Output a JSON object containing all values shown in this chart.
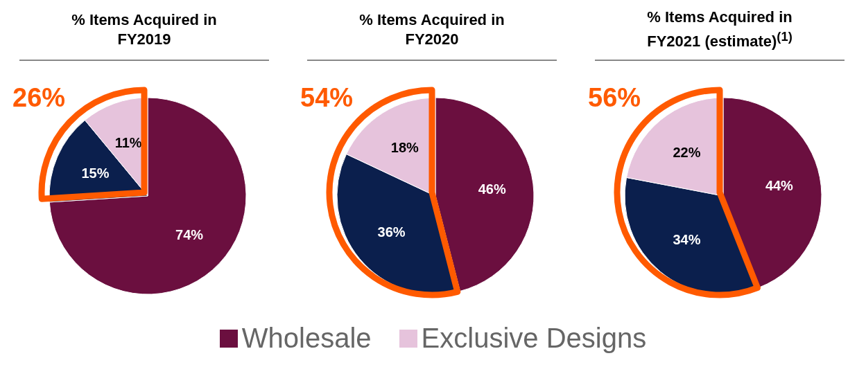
{
  "chart_data": [
    {
      "type": "pie",
      "title": "% Items Acquired in FY2019",
      "categories": [
        "Wholesale",
        null,
        "Exclusive Designs"
      ],
      "values": [
        74,
        15,
        11
      ],
      "colors": [
        "#6b0f3f",
        "#0b1f4d",
        "#e6c3dc"
      ],
      "value_labels": [
        "74%",
        "15%",
        "11%"
      ],
      "annotations": [
        "26%"
      ],
      "legend": "bottom"
    },
    {
      "type": "pie",
      "title": "% Items Acquired in FY2020",
      "categories": [
        null,
        null,
        null
      ],
      "values": [
        46,
        36,
        18
      ],
      "colors": [
        "#6b0f3f",
        "#0b1f4d",
        "#e6c3dc"
      ],
      "value_labels": [
        "46%",
        "36%",
        "18%"
      ],
      "annotations": [
        "54%"
      ]
    },
    {
      "type": "pie",
      "title": "% Items Acquired in FY2021 (estimate)$^{(1)}$",
      "categories": [
        null,
        null,
        null
      ],
      "values": [
        44,
        34,
        22
      ],
      "colors": [
        "#6b0f3f",
        "#0b1f4d",
        "#e6c3dc"
      ],
      "value_labels": [
        "44%",
        "34%",
        "22%"
      ],
      "annotations": [
        "56%"
      ]
    }
  ]
}
